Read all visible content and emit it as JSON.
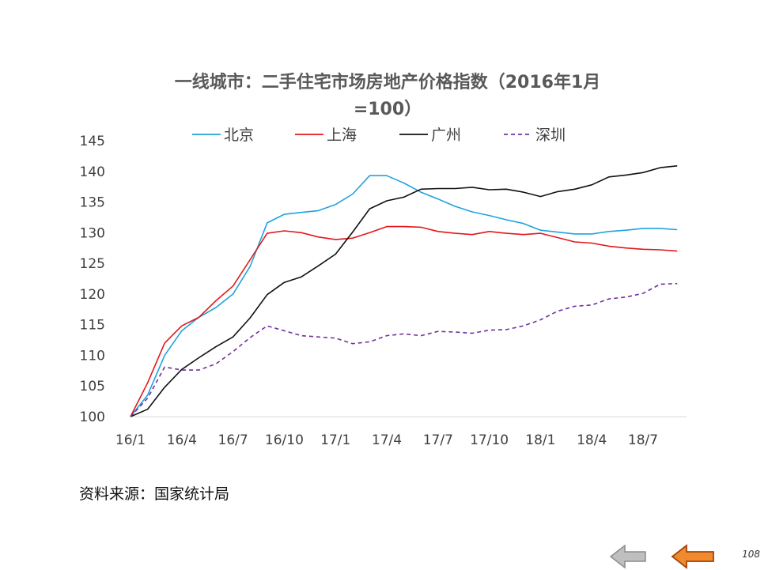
{
  "chart_data": {
    "type": "line",
    "title_line1": "一线城市：二手住宅市场房地产价格指数（2016年1月",
    "title_line2": "=100）",
    "x_tick_labels": [
      "16/1",
      "16/4",
      "16/7",
      "16/10",
      "17/1",
      "17/4",
      "17/7",
      "17/10",
      "18/1",
      "18/4",
      "18/7"
    ],
    "ylim": [
      100,
      145
    ],
    "y_ticks": [
      100,
      105,
      110,
      115,
      120,
      125,
      130,
      135,
      140,
      145
    ],
    "grid": false,
    "legend_position": "top",
    "series": [
      {
        "name": "北京",
        "color": "#1fa3dc",
        "dash": "",
        "values": [
          100,
          103.5,
          110,
          114,
          116.2,
          117.8,
          120,
          124.5,
          131.6,
          133,
          133.3,
          133.6,
          134.6,
          136.3,
          139.3,
          139.3,
          138.1,
          136.6,
          135.5,
          134.3,
          133.4,
          132.8,
          132.1,
          131.5,
          130.4,
          130.1,
          129.8,
          129.8,
          130.2,
          130.4,
          130.7,
          130.7,
          130.5
        ]
      },
      {
        "name": "上海",
        "color": "#e3171a",
        "dash": "",
        "values": [
          100,
          105.5,
          112,
          114.8,
          116.2,
          118.9,
          121.3,
          125.6,
          129.9,
          130.3,
          130.0,
          129.3,
          128.9,
          129.1,
          130.0,
          131.0,
          131.0,
          130.9,
          130.2,
          129.9,
          129.7,
          130.2,
          129.9,
          129.7,
          129.9,
          129.2,
          128.5,
          128.3,
          127.8,
          127.5,
          127.3,
          127.2,
          127.0
        ]
      },
      {
        "name": "广州",
        "color": "#111111",
        "dash": "",
        "values": [
          100,
          101.2,
          104.8,
          107.7,
          109.6,
          111.4,
          113,
          116.1,
          119.9,
          121.9,
          122.8,
          124.6,
          126.5,
          130.1,
          133.9,
          135.2,
          135.8,
          137.1,
          137.2,
          137.2,
          137.4,
          137.0,
          137.1,
          136.6,
          135.9,
          136.7,
          137.1,
          137.8,
          139.1,
          139.4,
          139.8,
          140.6,
          140.9
        ]
      },
      {
        "name": "深圳",
        "color": "#7030a0",
        "dash": "5,4",
        "values": [
          100,
          103,
          108.1,
          107.6,
          107.6,
          108.6,
          110.6,
          112.9,
          114.8,
          114,
          113.2,
          113,
          112.8,
          111.9,
          112.2,
          113.2,
          113.5,
          113.2,
          113.9,
          113.8,
          113.6,
          114.1,
          114.2,
          114.8,
          115.8,
          117.2,
          118.0,
          118.2,
          119.2,
          119.5,
          120.1,
          121.6,
          121.7
        ]
      }
    ]
  },
  "source": {
    "text": "资料来源：国家统计局"
  },
  "footer": {
    "page_number": "108",
    "back_icon_color": "#bfbfbf",
    "next_icon_color": "#f08a2c"
  }
}
